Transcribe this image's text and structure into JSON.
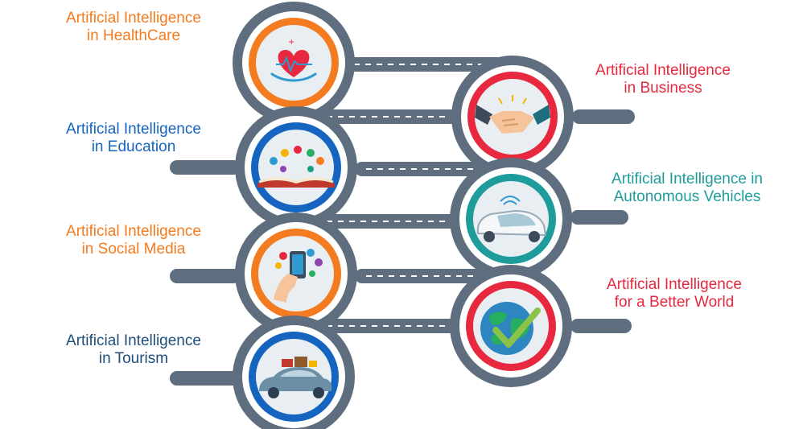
{
  "items": [
    {
      "line1": "Artificial Intelligence",
      "line2": "in HealthCare",
      "color": "#F47B20",
      "icon": "heart-care-icon"
    },
    {
      "line1": "Artificial Intelligence",
      "line2": "in Business",
      "color": "#E8283E",
      "icon": "handshake-icon"
    },
    {
      "line1": "Artificial Intelligence",
      "line2": "in Education",
      "color": "#1565C0",
      "icon": "open-book-icon"
    },
    {
      "line1": "Artificial Intelligence in",
      "line2": "Autonomous Vehicles",
      "color": "#1E9C9C",
      "icon": "autonomous-car-icon"
    },
    {
      "line1": "Artificial Intelligence",
      "line2": "in Social Media",
      "color": "#F47B20",
      "icon": "social-media-phone-icon"
    },
    {
      "line1": "Artificial Intelligence",
      "line2": "for a Better World",
      "color": "#E8283E",
      "icon": "globe-check-icon"
    },
    {
      "line1": "Artificial Intelligence",
      "line2": "in Tourism",
      "color": "#1F4E79",
      "icon": "car-luggage-icon"
    }
  ],
  "colors": {
    "road": "#5E6E7E",
    "disc": "#E9EEF2"
  }
}
